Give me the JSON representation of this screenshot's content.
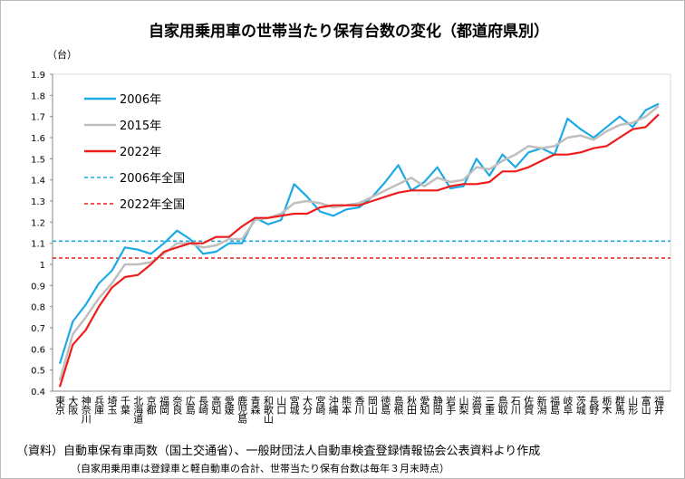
{
  "chart_data": {
    "type": "line",
    "title": "自家用乗用車の世帯当たり保有台数の変化（都道府県別）",
    "y_unit_label": "（台）",
    "source": "（資料）自動車保有車両数（国土交通省）、一般財団法人自動車検査登録情報協会公表資料より作成",
    "note": "（自家用乗用車は登録車と軽自動車の合計、世帯当たり保有台数は毎年３月末時点）",
    "categories": [
      "東京",
      "大阪",
      "神奈川",
      "兵庫",
      "埼玉",
      "千葉",
      "北海道",
      "京都",
      "福岡",
      "奈良",
      "広島",
      "長崎",
      "高知",
      "愛媛",
      "鹿児島",
      "青森",
      "和歌山",
      "山口",
      "宮城",
      "大分",
      "宮崎",
      "沖縄",
      "熊本",
      "香川",
      "岡山",
      "徳島",
      "島根",
      "秋田",
      "愛知",
      "静岡",
      "岩手",
      "山梨",
      "滋賀",
      "三重",
      "鳥取",
      "石川",
      "佐賀",
      "新潟",
      "福島",
      "岐阜",
      "茨城",
      "長野",
      "栃木",
      "群馬",
      "山形",
      "富山",
      "福井"
    ],
    "series": [
      {
        "name": "2006年",
        "color": "#1ca9e6",
        "values": [
          0.53,
          0.73,
          0.81,
          0.91,
          0.97,
          1.08,
          1.07,
          1.05,
          1.1,
          1.16,
          1.12,
          1.05,
          1.06,
          1.1,
          1.1,
          1.22,
          1.19,
          1.21,
          1.38,
          1.32,
          1.25,
          1.23,
          1.26,
          1.27,
          1.32,
          1.39,
          1.47,
          1.35,
          1.39,
          1.46,
          1.36,
          1.37,
          1.5,
          1.42,
          1.52,
          1.46,
          1.53,
          1.55,
          1.52,
          1.69,
          1.64,
          1.6,
          1.65,
          1.7,
          1.65,
          1.73,
          1.76
        ]
      },
      {
        "name": "2015年",
        "color": "#bfbfbf",
        "values": [
          0.45,
          0.67,
          0.75,
          0.84,
          0.91,
          1.0,
          1.0,
          1.01,
          1.05,
          1.1,
          1.1,
          1.08,
          1.09,
          1.12,
          1.12,
          1.21,
          1.22,
          1.24,
          1.29,
          1.3,
          1.29,
          1.27,
          1.28,
          1.29,
          1.32,
          1.35,
          1.38,
          1.41,
          1.37,
          1.41,
          1.39,
          1.4,
          1.46,
          1.45,
          1.49,
          1.52,
          1.56,
          1.55,
          1.56,
          1.6,
          1.61,
          1.59,
          1.63,
          1.66,
          1.67,
          1.7,
          1.75
        ]
      },
      {
        "name": "2022年",
        "color": "#ee1c1c",
        "values": [
          0.42,
          0.62,
          0.69,
          0.8,
          0.89,
          0.94,
          0.95,
          1.0,
          1.06,
          1.08,
          1.1,
          1.1,
          1.13,
          1.13,
          1.18,
          1.22,
          1.22,
          1.23,
          1.24,
          1.24,
          1.27,
          1.28,
          1.28,
          1.28,
          1.3,
          1.32,
          1.34,
          1.35,
          1.35,
          1.35,
          1.37,
          1.38,
          1.38,
          1.39,
          1.44,
          1.44,
          1.46,
          1.49,
          1.52,
          1.52,
          1.53,
          1.55,
          1.56,
          1.6,
          1.64,
          1.65,
          1.71
        ]
      }
    ],
    "reference_lines": [
      {
        "name": "2006年全国",
        "color": "#1ca9e6",
        "value": 1.11
      },
      {
        "name": "2022年全国",
        "color": "#ee1c1c",
        "value": 1.03
      }
    ],
    "ylim": [
      0.4,
      1.9
    ],
    "yticks": [
      0.4,
      0.5,
      0.6,
      0.7,
      0.8,
      0.9,
      1,
      1.1,
      1.2,
      1.3,
      1.4,
      1.5,
      1.6,
      1.7,
      1.8,
      1.9
    ],
    "legend": "upper left"
  }
}
